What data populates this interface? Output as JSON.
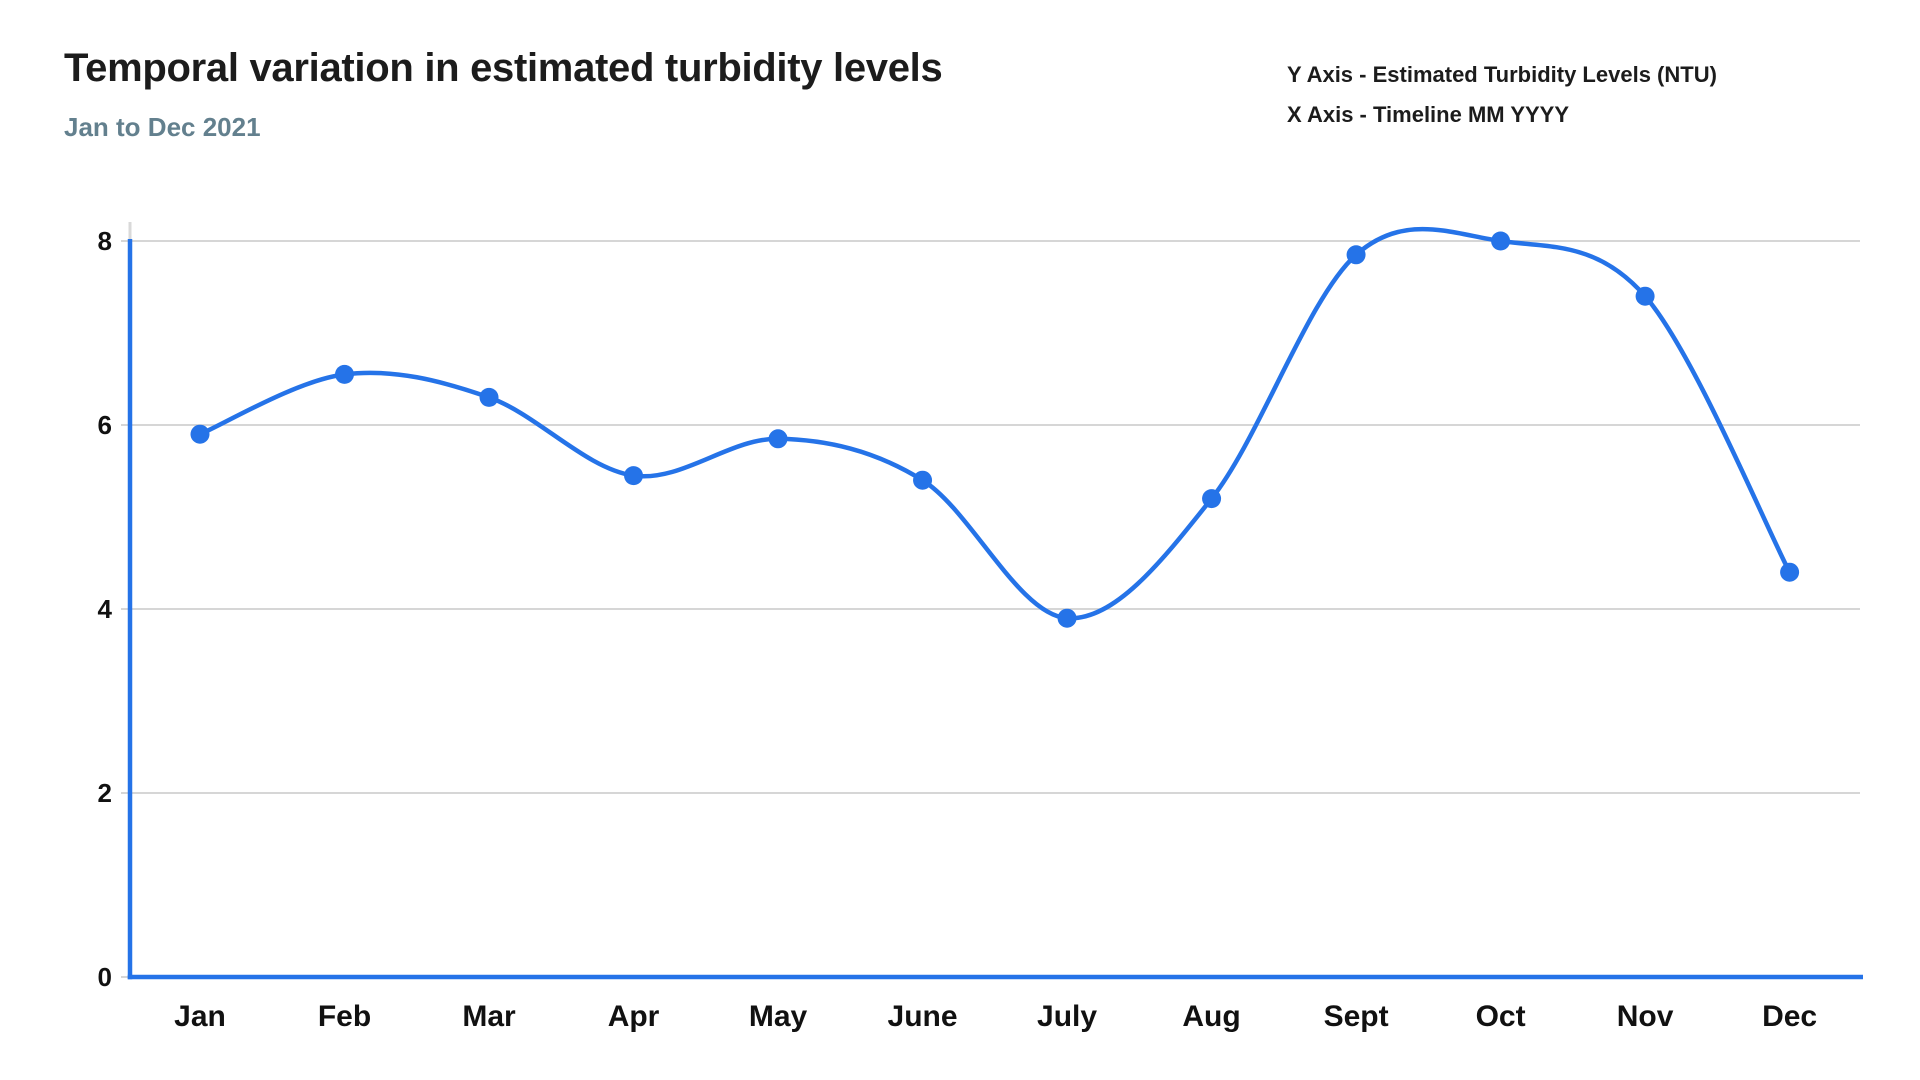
{
  "colors": {
    "accent_blue": "#2573e8",
    "grid_gray": "#c9c9c9",
    "subtitle_gray": "#63808e",
    "text_dark": "#1c1c1c"
  },
  "chart_data": {
    "type": "line",
    "title": "Temporal variation in estimated turbidity levels",
    "subtitle": "Jan to Dec 2021",
    "annotations": [
      "Y Axis - Estimated Turbidity Levels (NTU)",
      "X Axis - Timeline MM YYYY"
    ],
    "categories": [
      "Jan",
      "Feb",
      "Mar",
      "Apr",
      "May",
      "June",
      "July",
      "Aug",
      "Sept",
      "Oct",
      "Nov",
      "Dec"
    ],
    "series": [
      {
        "name": "Estimated Turbidity Levels (NTU)",
        "values": [
          5.9,
          6.55,
          6.3,
          5.45,
          5.85,
          5.4,
          3.9,
          5.2,
          7.85,
          8.0,
          7.4,
          4.4
        ]
      }
    ],
    "y_ticks": [
      0,
      2,
      4,
      6,
      8
    ],
    "ylim": [
      0,
      8
    ],
    "grid": "horizontal",
    "legend_position": "none",
    "line_style": "smooth",
    "marker": "circle"
  }
}
